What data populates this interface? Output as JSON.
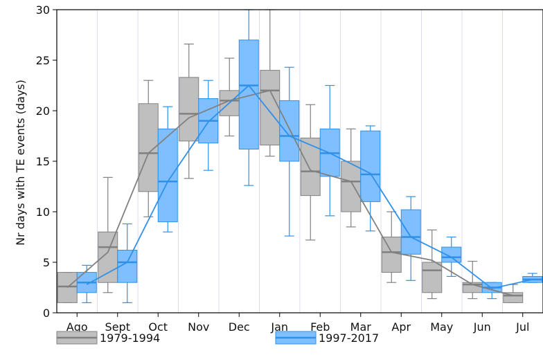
{
  "chart_data": {
    "type": "box",
    "title": "",
    "xlabel": "",
    "ylabel": "Nr days with TE events (days)",
    "ylim": [
      0,
      30
    ],
    "yticks": [
      0,
      5,
      10,
      15,
      20,
      25,
      30
    ],
    "grid": "vertical",
    "legend_position": "bottom",
    "categories": [
      "Ago",
      "Sept",
      "Oct",
      "Nov",
      "Dec",
      "Jan",
      "Feb",
      "Mar",
      "Apr",
      "May",
      "Jun",
      "Jul"
    ],
    "series": [
      {
        "name": "1979-1994",
        "color": "#808080",
        "fill": "#bfbfbf",
        "boxes": [
          {
            "whislo": 1,
            "q1": 1,
            "med": 2.6,
            "q3": 4,
            "whishi": 4
          },
          {
            "whislo": 2,
            "q1": 3,
            "med": 6.5,
            "q3": 8,
            "whishi": 13.4
          },
          {
            "whislo": 9.5,
            "q1": 12,
            "med": 15.8,
            "q3": 20.7,
            "whishi": 23
          },
          {
            "whislo": 13.3,
            "q1": 17,
            "med": 19.7,
            "q3": 23.3,
            "whishi": 26.6
          },
          {
            "whislo": 17.5,
            "q1": 19.5,
            "med": 21,
            "q3": 22,
            "whishi": 25.2
          },
          {
            "whislo": 15.5,
            "q1": 16.6,
            "med": 22,
            "q3": 24,
            "whishi": 30
          },
          {
            "whislo": 7.2,
            "q1": 11.6,
            "med": 14,
            "q3": 17.3,
            "whishi": 20.6
          },
          {
            "whislo": 8.5,
            "q1": 10,
            "med": 13,
            "q3": 15,
            "whishi": 18.2
          },
          {
            "whislo": 3,
            "q1": 4,
            "med": 6,
            "q3": 7.5,
            "whishi": 10
          },
          {
            "whislo": 1.4,
            "q1": 2,
            "med": 4.2,
            "q3": 5,
            "whishi": 8.2
          },
          {
            "whislo": 1.4,
            "q1": 2,
            "med": 2.8,
            "q3": 3,
            "whishi": 5.1
          },
          {
            "whislo": 1,
            "q1": 1,
            "med": 1.7,
            "q3": 2,
            "whishi": 2.8
          }
        ],
        "means": [
          2.5,
          6,
          15.8,
          19.3,
          21,
          22,
          14.1,
          13,
          6,
          5.2,
          2.8,
          1.7
        ]
      },
      {
        "name": "1997-2017",
        "color": "#2e90e8",
        "fill": "#7fbfff",
        "boxes": [
          {
            "whislo": 1,
            "q1": 2,
            "med": 3,
            "q3": 4,
            "whishi": 4.7
          },
          {
            "whislo": 1,
            "q1": 3,
            "med": 5,
            "q3": 6.2,
            "whishi": 8.8
          },
          {
            "whislo": 8,
            "q1": 9,
            "med": 13,
            "q3": 18.2,
            "whishi": 20.4
          },
          {
            "whislo": 14.1,
            "q1": 16.8,
            "med": 19,
            "q3": 21.2,
            "whishi": 23
          },
          {
            "whislo": 12.6,
            "q1": 16.2,
            "med": 22.5,
            "q3": 27,
            "whishi": 30
          },
          {
            "whislo": 7.6,
            "q1": 15,
            "med": 17.5,
            "q3": 21,
            "whishi": 24.3
          },
          {
            "whislo": 9.6,
            "q1": 13.5,
            "med": 15.8,
            "q3": 18.2,
            "whishi": 22.5
          },
          {
            "whislo": 8.1,
            "q1": 11,
            "med": 13.7,
            "q3": 18,
            "whishi": 18.5
          },
          {
            "whislo": 3.2,
            "q1": 5.8,
            "med": 7.5,
            "q3": 10.2,
            "whishi": 11.5
          },
          {
            "whislo": 3.6,
            "q1": 5,
            "med": 5.5,
            "q3": 6.5,
            "whishi": 7.5
          },
          {
            "whislo": 1.4,
            "q1": 2,
            "med": 2.5,
            "q3": 3,
            "whishi": 3
          },
          {
            "whislo": 3,
            "q1": 3,
            "med": 3.3,
            "q3": 3.6,
            "whishi": 3.9
          }
        ],
        "means": [
          2.8,
          5,
          13,
          18.9,
          22.5,
          17.5,
          15.8,
          13.8,
          7.5,
          5.5,
          2.4,
          3.3
        ]
      }
    ]
  }
}
